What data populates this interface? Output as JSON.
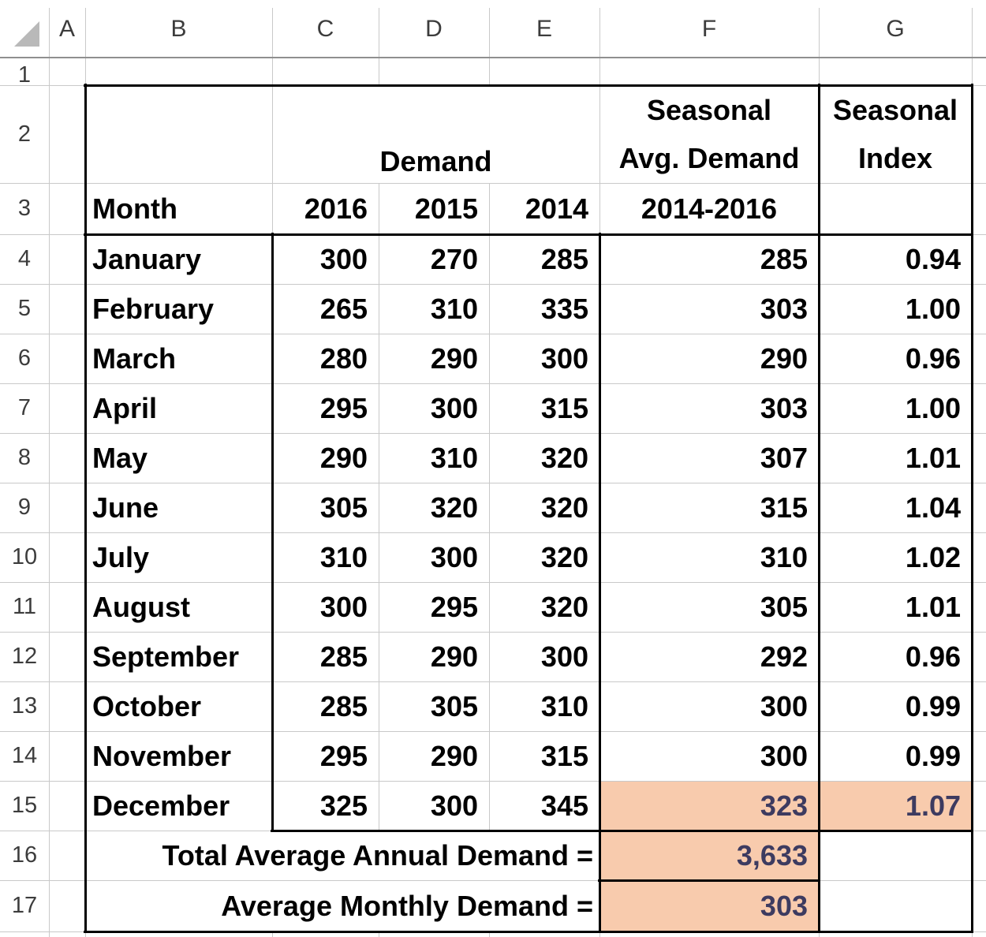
{
  "sheet": {
    "column_letters": [
      "A",
      "B",
      "C",
      "D",
      "E",
      "F",
      "G"
    ],
    "row_numbers": [
      "1",
      "2",
      "3",
      "4",
      "5",
      "6",
      "7",
      "8",
      "9",
      "10",
      "11",
      "12",
      "13",
      "14",
      "15",
      "16",
      "17"
    ],
    "header": {
      "demand": "Demand",
      "seasonal_avg_line1": "Seasonal",
      "seasonal_avg_line2": "Avg. Demand",
      "seasonal_index_line1": "Seasonal",
      "seasonal_index_line2": "Index",
      "month": "Month",
      "year_cols": [
        "2016",
        "2015",
        "2014"
      ],
      "avg_range": "2014-2016"
    },
    "rows": [
      {
        "month": "January",
        "y2016": "300",
        "y2015": "270",
        "y2014": "285",
        "avg": "285",
        "index": "0.94"
      },
      {
        "month": "February",
        "y2016": "265",
        "y2015": "310",
        "y2014": "335",
        "avg": "303",
        "index": "1.00"
      },
      {
        "month": "March",
        "y2016": "280",
        "y2015": "290",
        "y2014": "300",
        "avg": "290",
        "index": "0.96"
      },
      {
        "month": "April",
        "y2016": "295",
        "y2015": "300",
        "y2014": "315",
        "avg": "303",
        "index": "1.00"
      },
      {
        "month": "May",
        "y2016": "290",
        "y2015": "310",
        "y2014": "320",
        "avg": "307",
        "index": "1.01"
      },
      {
        "month": "June",
        "y2016": "305",
        "y2015": "320",
        "y2014": "320",
        "avg": "315",
        "index": "1.04"
      },
      {
        "month": "July",
        "y2016": "310",
        "y2015": "300",
        "y2014": "320",
        "avg": "310",
        "index": "1.02"
      },
      {
        "month": "August",
        "y2016": "300",
        "y2015": "295",
        "y2014": "320",
        "avg": "305",
        "index": "1.01"
      },
      {
        "month": "September",
        "y2016": "285",
        "y2015": "290",
        "y2014": "300",
        "avg": "292",
        "index": "0.96"
      },
      {
        "month": "October",
        "y2016": "285",
        "y2015": "305",
        "y2014": "310",
        "avg": "300",
        "index": "0.99"
      },
      {
        "month": "November",
        "y2016": "295",
        "y2015": "290",
        "y2014": "315",
        "avg": "300",
        "index": "0.99"
      },
      {
        "month": "December",
        "y2016": "325",
        "y2015": "300",
        "y2014": "345",
        "avg": "323",
        "index": "1.07",
        "highlight": true
      }
    ],
    "totals": [
      {
        "label": "Total Average Annual Demand =",
        "value": "3,633"
      },
      {
        "label": "Average Monthly Demand =",
        "value": "303"
      }
    ],
    "colors": {
      "highlight_fill": "#F8CBAD",
      "highlight_text": "#3D3B60",
      "grid_line": "#C9C9C9",
      "bold_border": "#000000",
      "header_text": "#3C3C3C"
    }
  }
}
